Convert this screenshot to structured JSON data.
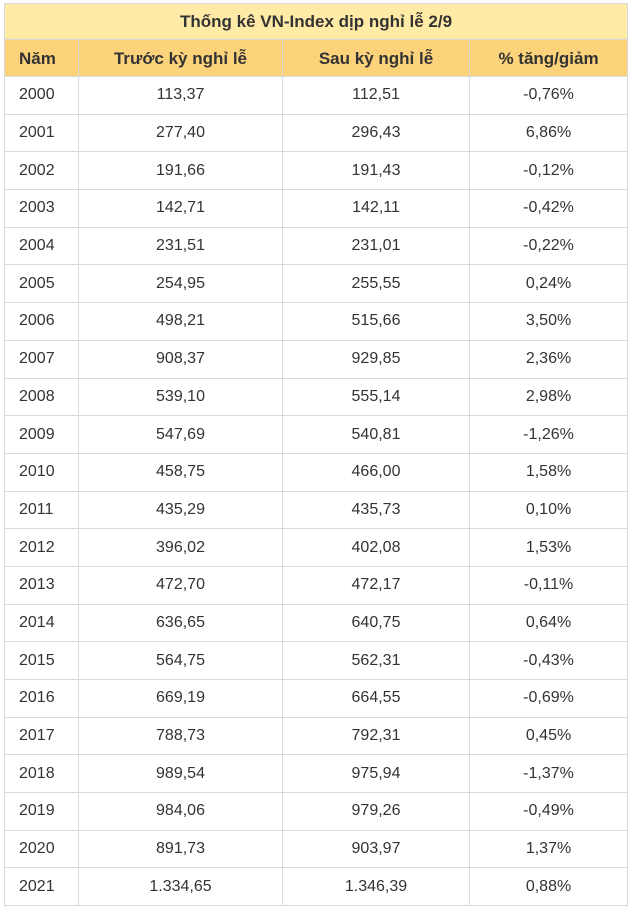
{
  "table": {
    "title": "Thống kê VN-Index dịp nghỉ lễ 2/9",
    "headers": [
      "Năm",
      "Trước kỳ nghỉ lễ",
      "Sau kỳ nghỉ lễ",
      "% tăng/giảm"
    ],
    "rows": [
      [
        "2000",
        "113,37",
        "112,51",
        "-0,76%"
      ],
      [
        "2001",
        "277,40",
        "296,43",
        "6,86%"
      ],
      [
        "2002",
        "191,66",
        "191,43",
        "-0,12%"
      ],
      [
        "2003",
        "142,71",
        "142,11",
        "-0,42%"
      ],
      [
        "2004",
        "231,51",
        "231,01",
        "-0,22%"
      ],
      [
        "2005",
        "254,95",
        "255,55",
        "0,24%"
      ],
      [
        "2006",
        "498,21",
        "515,66",
        "3,50%"
      ],
      [
        "2007",
        "908,37",
        "929,85",
        "2,36%"
      ],
      [
        "2008",
        "539,10",
        "555,14",
        "2,98%"
      ],
      [
        "2009",
        "547,69",
        "540,81",
        "-1,26%"
      ],
      [
        "2010",
        "458,75",
        "466,00",
        "1,58%"
      ],
      [
        "2011",
        "435,29",
        "435,73",
        "0,10%"
      ],
      [
        "2012",
        "396,02",
        "402,08",
        "1,53%"
      ],
      [
        "2013",
        "472,70",
        "472,17",
        "-0,11%"
      ],
      [
        "2014",
        "636,65",
        "640,75",
        "0,64%"
      ],
      [
        "2015",
        "564,75",
        "562,31",
        "-0,43%"
      ],
      [
        "2016",
        "669,19",
        "664,55",
        "-0,69%"
      ],
      [
        "2017",
        "788,73",
        "792,31",
        "0,45%"
      ],
      [
        "2018",
        "989,54",
        "975,94",
        "-1,37%"
      ],
      [
        "2019",
        "984,06",
        "979,26",
        "-0,49%"
      ],
      [
        "2020",
        "891,73",
        "903,97",
        "1,37%"
      ],
      [
        "2021",
        "1.334,65",
        "1.346,39",
        "0,88%"
      ]
    ]
  },
  "colors": {
    "title_bg": "#ffeba6",
    "header_bg": "#fcd37a",
    "border": "#d9d9d9",
    "text": "#333333"
  }
}
